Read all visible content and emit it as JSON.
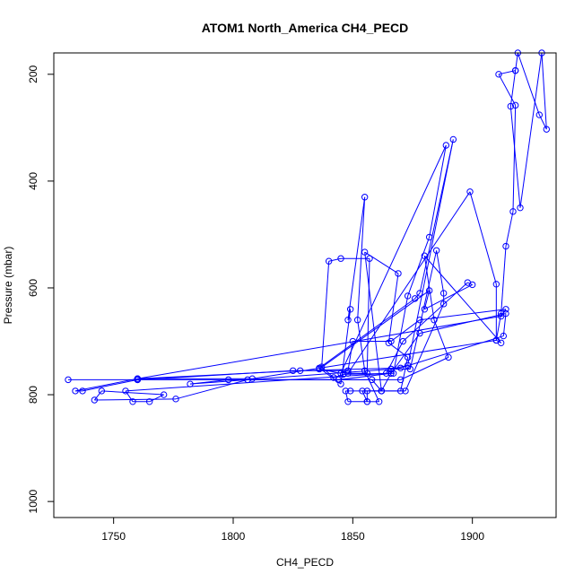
{
  "chart_data": {
    "type": "scatter",
    "title": "ATOM1 North_America CH4_PECD",
    "xlabel": "CH4_PECD",
    "ylabel": "Pressure (mbar)",
    "xlim": [
      1725,
      1935
    ],
    "ylim": [
      1030,
      160
    ],
    "y_reversed": true,
    "xticks": [
      1750,
      1800,
      1850,
      1900
    ],
    "xtick_labels": [
      "1750",
      "1800",
      "1850",
      "1900"
    ],
    "yticks": [
      200,
      400,
      600,
      800,
      1000
    ],
    "ytick_labels": [
      "200",
      "400",
      "600",
      "800",
      "1000"
    ],
    "grid": false,
    "legend": "none",
    "colors": {
      "series": "#0000ff",
      "axis": "#000000"
    },
    "series": [
      {
        "marker": "open-circle",
        "connected": true,
        "points": [
          [
            1731,
            772
          ],
          [
            1760,
            772
          ],
          [
            1844,
            772
          ],
          [
            1866,
            760
          ],
          [
            1878,
            685
          ],
          [
            1914,
            648
          ],
          [
            1913,
            690
          ],
          [
            1870,
            750
          ],
          [
            1828,
            755
          ],
          [
            1760,
            770
          ],
          [
            1734,
            793
          ],
          [
            1737,
            793
          ],
          [
            1760,
            772
          ],
          [
            1825,
            755
          ],
          [
            1848,
            755
          ],
          [
            1850,
            700
          ],
          [
            1866,
            700
          ],
          [
            1878,
            660
          ],
          [
            1914,
            640
          ],
          [
            1912,
            653
          ],
          [
            1760,
            770
          ],
          [
            1808,
            770
          ],
          [
            1910,
            698
          ],
          [
            1910,
            593
          ],
          [
            1899,
            420
          ],
          [
            1848,
            760
          ],
          [
            1856,
            760
          ],
          [
            1857,
            545
          ],
          [
            1845,
            545
          ],
          [
            1840,
            550
          ],
          [
            1837,
            748
          ],
          [
            1842,
            768
          ],
          [
            1846,
            762
          ],
          [
            1867,
            760
          ],
          [
            1873,
            615
          ],
          [
            1882,
            505
          ],
          [
            1889,
            333
          ],
          [
            1845,
            760
          ],
          [
            1836,
            752
          ],
          [
            1882,
            605
          ],
          [
            1880,
            640
          ],
          [
            1900,
            594
          ],
          [
            1898,
            590
          ],
          [
            1871,
            700
          ],
          [
            1864,
            760
          ],
          [
            1755,
            793
          ],
          [
            1758,
            813
          ],
          [
            1765,
            813
          ],
          [
            1771,
            800
          ],
          [
            1745,
            793
          ],
          [
            1742,
            810
          ],
          [
            1776,
            808
          ],
          [
            1806,
            772
          ],
          [
            1858,
            772
          ],
          [
            1862,
            793
          ],
          [
            1870,
            793
          ],
          [
            1873,
            730
          ],
          [
            1865,
            703
          ],
          [
            1869,
            573
          ],
          [
            1855,
            533
          ],
          [
            1862,
            793
          ],
          [
            1854,
            793
          ],
          [
            1856,
            813
          ],
          [
            1861,
            813
          ],
          [
            1855,
            755
          ],
          [
            1852,
            660
          ],
          [
            1855,
            430
          ],
          [
            1848,
            660
          ],
          [
            1849,
            640
          ],
          [
            1845,
            780
          ],
          [
            1836,
            750
          ],
          [
            1876,
            620
          ],
          [
            1878,
            610
          ],
          [
            1892,
            322
          ],
          [
            1873,
            745
          ],
          [
            1866,
            752
          ],
          [
            1866,
            760
          ],
          [
            1862,
            793
          ],
          [
            1849,
            793
          ],
          [
            1847,
            793
          ],
          [
            1848,
            813
          ],
          [
            1856,
            813
          ],
          [
            1856,
            793
          ],
          [
            1872,
            793
          ],
          [
            1888,
            630
          ],
          [
            1888,
            610
          ],
          [
            1885,
            530
          ],
          [
            1874,
            752
          ],
          [
            1866,
            752
          ],
          [
            1782,
            780
          ],
          [
            1798,
            772
          ],
          [
            1870,
            772
          ],
          [
            1890,
            730
          ],
          [
            1884,
            660
          ],
          [
            1880,
            540
          ],
          [
            1912,
            703
          ],
          [
            1910,
            698
          ],
          [
            1912,
            648
          ],
          [
            1914,
            522
          ],
          [
            1917,
            457
          ],
          [
            1918,
            258
          ],
          [
            1911,
            200
          ],
          [
            1918,
            193
          ],
          [
            1916,
            260
          ],
          [
            1920,
            450
          ],
          [
            1929,
            160
          ],
          [
            1931,
            303
          ],
          [
            1928,
            276
          ],
          [
            1919,
            160
          ],
          [
            1918,
            193
          ]
        ]
      }
    ]
  }
}
